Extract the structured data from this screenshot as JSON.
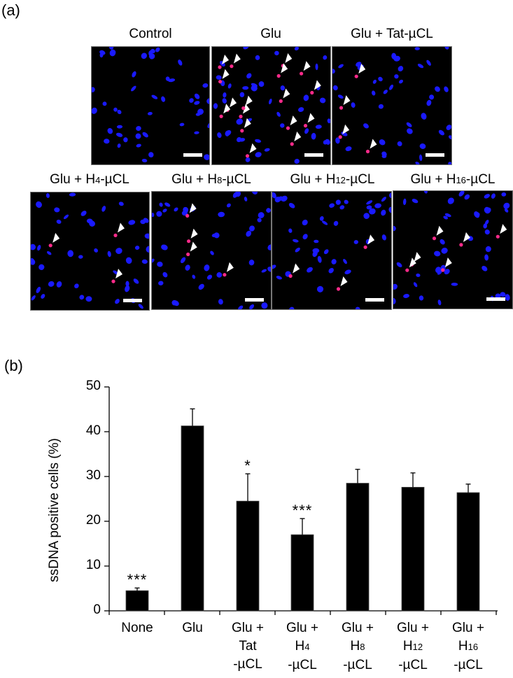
{
  "panel_a": {
    "label": "(a)",
    "images": [
      {
        "title": "Control",
        "arrow_count": 0
      },
      {
        "title": "Glu",
        "arrow_count": 17
      },
      {
        "title": "Glu + Tat-µCL",
        "arrow_count": 4
      },
      {
        "title_parts": [
          "Glu + H",
          "4",
          "-µCL"
        ],
        "arrow_count": 3
      },
      {
        "title_parts": [
          "Glu + H",
          "8",
          "-µCL"
        ],
        "arrow_count": 4
      },
      {
        "title_parts": [
          "Glu + H",
          "12",
          "-µCL"
        ],
        "arrow_count": 3
      },
      {
        "title_parts": [
          "Glu + H",
          "16",
          "-µCL"
        ],
        "arrow_count": 6
      }
    ],
    "colors": {
      "background": "#000000",
      "nuclei": "#1a1aff",
      "ssdna": "#ff2a8a",
      "arrow": "#ffffff",
      "scalebar": "#ffffff"
    }
  },
  "panel_b": {
    "label": "(b)"
  },
  "chart_data": {
    "type": "bar",
    "title": "",
    "xlabel": "",
    "ylabel": "ssDNA positive cells (%)",
    "ylim": [
      0,
      50
    ],
    "yticks": [
      0,
      10,
      20,
      30,
      40,
      50
    ],
    "grid": false,
    "legend": null,
    "categories": [
      "None",
      "Glu",
      "Glu + Tat -µCL",
      "Glu + H4 -µCL",
      "Glu + H8 -µCL",
      "Glu + H12 -µCL",
      "Glu + H16 -µCL"
    ],
    "category_lines": [
      [
        "None"
      ],
      [
        "Glu"
      ],
      [
        "Glu +",
        "Tat",
        "-µCL"
      ],
      [
        "Glu +",
        "H4",
        "-µCL"
      ],
      [
        "Glu +",
        "H8",
        "-µCL"
      ],
      [
        "Glu +",
        "H12",
        "-µCL"
      ],
      [
        "Glu +",
        "H16",
        "-µCL"
      ]
    ],
    "values": [
      4.5,
      41.3,
      24.5,
      17.0,
      28.5,
      27.6,
      26.4
    ],
    "error_upper": [
      0.6,
      3.8,
      6.1,
      3.6,
      3.1,
      3.2,
      1.9
    ],
    "significance": [
      "***",
      "",
      "*",
      "***",
      "",
      "",
      ""
    ],
    "bar_color": "#000000"
  }
}
